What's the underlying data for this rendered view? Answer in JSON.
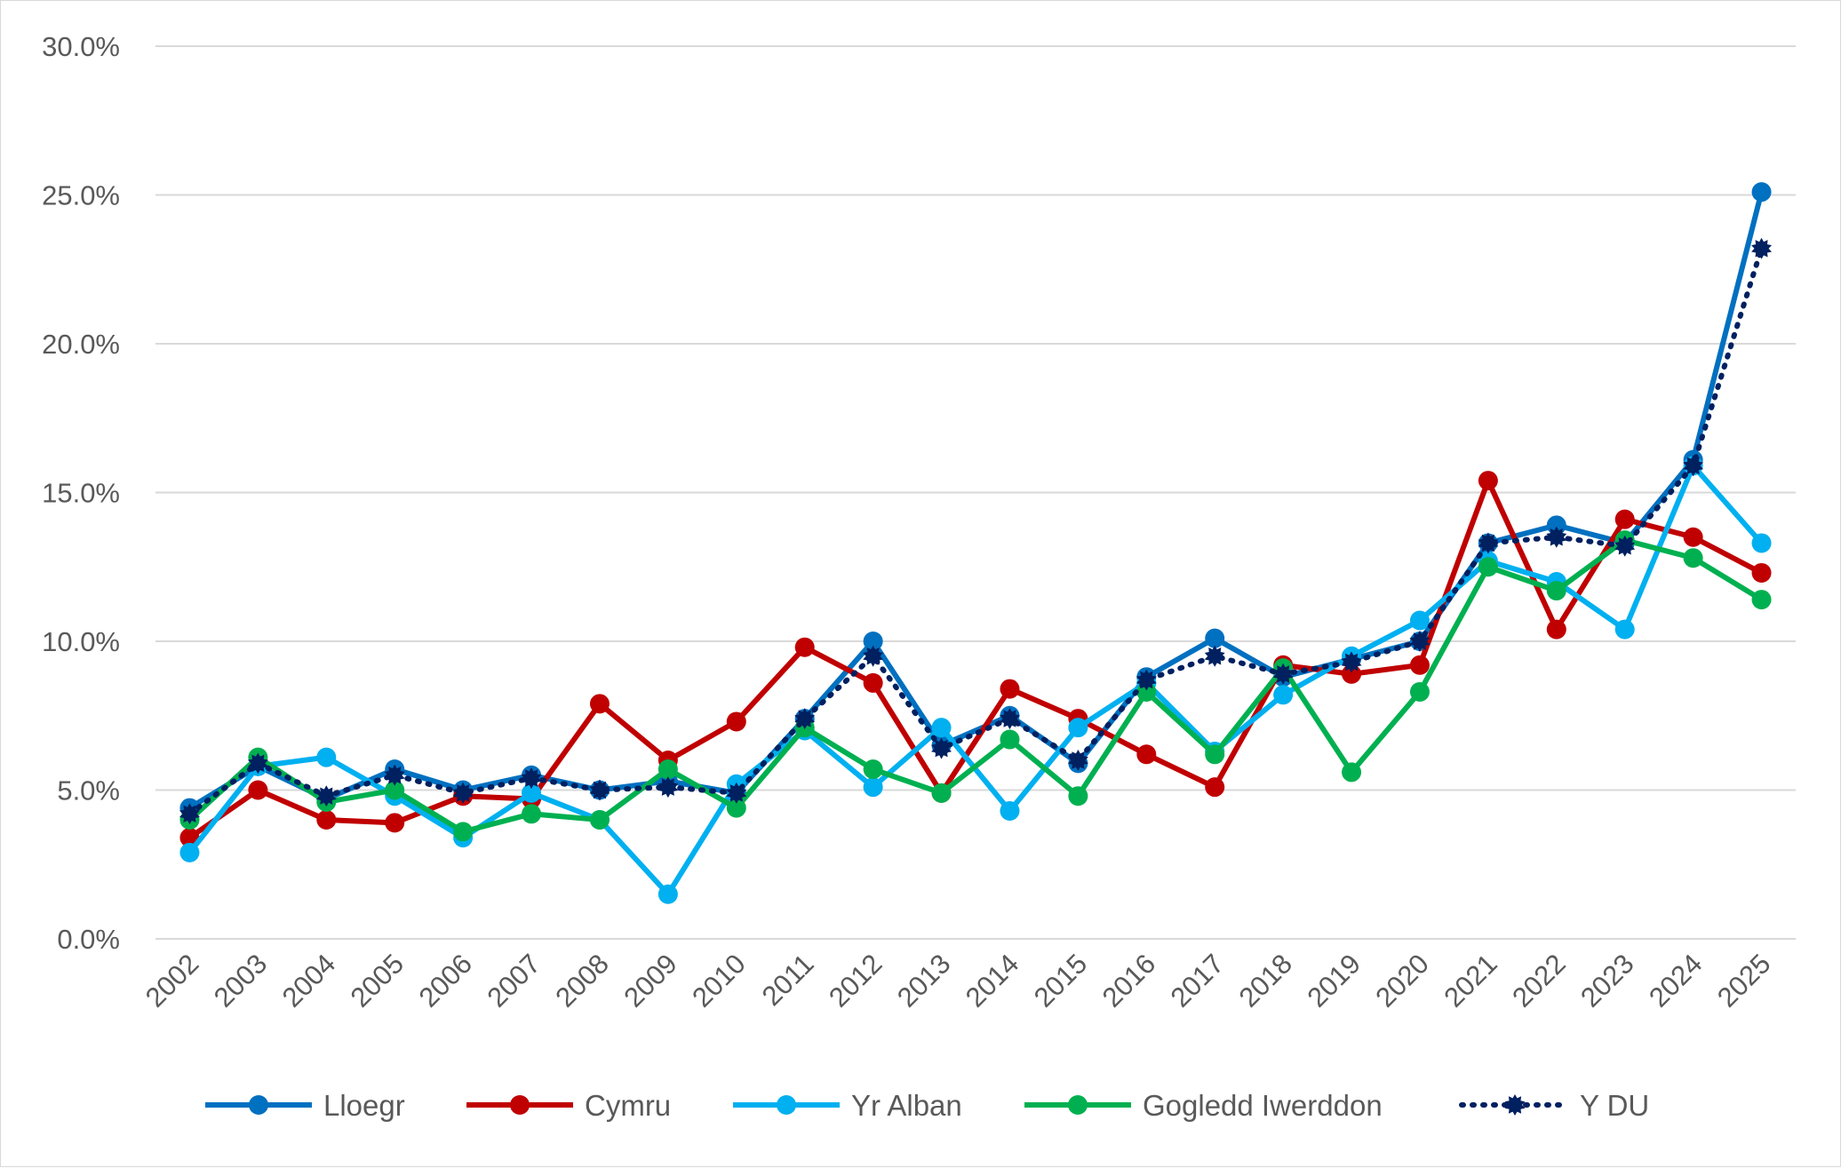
{
  "chart_data": {
    "type": "line",
    "title": "",
    "xlabel": "",
    "ylabel": "",
    "ylim": [
      0,
      30
    ],
    "y_ticks": [
      "0.0%",
      "5.0%",
      "10.0%",
      "15.0%",
      "20.0%",
      "25.0%",
      "30.0%"
    ],
    "y_tick_values": [
      0,
      5,
      10,
      15,
      20,
      25,
      30
    ],
    "grid": "horizontal",
    "legend_position": "bottom",
    "categories": [
      "2002",
      "2003",
      "2004",
      "2005",
      "2006",
      "2007",
      "2008",
      "2009",
      "2010",
      "2011",
      "2012",
      "2013",
      "2014",
      "2015",
      "2016",
      "2017",
      "2018",
      "2019",
      "2020",
      "2021",
      "2022",
      "2023",
      "2024",
      "2025"
    ],
    "series": [
      {
        "name": "Lloegr",
        "color": "#0070c0",
        "style": "solid",
        "values": [
          4.4,
          5.8,
          4.7,
          5.7,
          5.0,
          5.5,
          5.0,
          5.3,
          4.9,
          7.4,
          10.0,
          6.5,
          7.5,
          5.9,
          8.8,
          10.1,
          8.8,
          9.4,
          10.0,
          13.3,
          13.9,
          13.3,
          16.1,
          25.1
        ]
      },
      {
        "name": "Cymru",
        "color": "#c00000",
        "style": "solid",
        "values": [
          3.4,
          5.0,
          4.0,
          3.9,
          4.8,
          4.7,
          7.9,
          6.0,
          7.3,
          9.8,
          8.6,
          4.9,
          8.4,
          7.4,
          6.2,
          5.1,
          9.2,
          8.9,
          9.2,
          15.4,
          10.4,
          14.1,
          13.5,
          12.3
        ]
      },
      {
        "name": "Yr Alban",
        "color": "#00b0f0",
        "style": "solid",
        "values": [
          2.9,
          5.8,
          6.1,
          4.8,
          3.4,
          4.9,
          4.0,
          1.5,
          5.2,
          7.0,
          5.1,
          7.1,
          4.3,
          7.1,
          8.6,
          6.3,
          8.2,
          9.5,
          10.7,
          12.7,
          12.0,
          10.4,
          15.9,
          13.3
        ]
      },
      {
        "name": "Gogledd Iwerddon",
        "color": "#00b050",
        "style": "solid",
        "values": [
          4.0,
          6.1,
          4.6,
          5.0,
          3.6,
          4.2,
          4.0,
          5.7,
          4.4,
          7.1,
          5.7,
          4.9,
          6.7,
          4.8,
          8.3,
          6.2,
          9.1,
          5.6,
          8.3,
          12.5,
          11.7,
          13.4,
          12.8,
          11.4
        ]
      },
      {
        "name": "Y DU",
        "color": "#002060",
        "style": "dotted",
        "values": [
          4.2,
          5.9,
          4.8,
          5.5,
          4.9,
          5.4,
          5.0,
          5.1,
          4.9,
          7.4,
          9.5,
          6.4,
          7.4,
          6.0,
          8.7,
          9.5,
          8.9,
          9.3,
          10.0,
          13.3,
          13.5,
          13.2,
          15.9,
          23.2
        ]
      }
    ]
  }
}
